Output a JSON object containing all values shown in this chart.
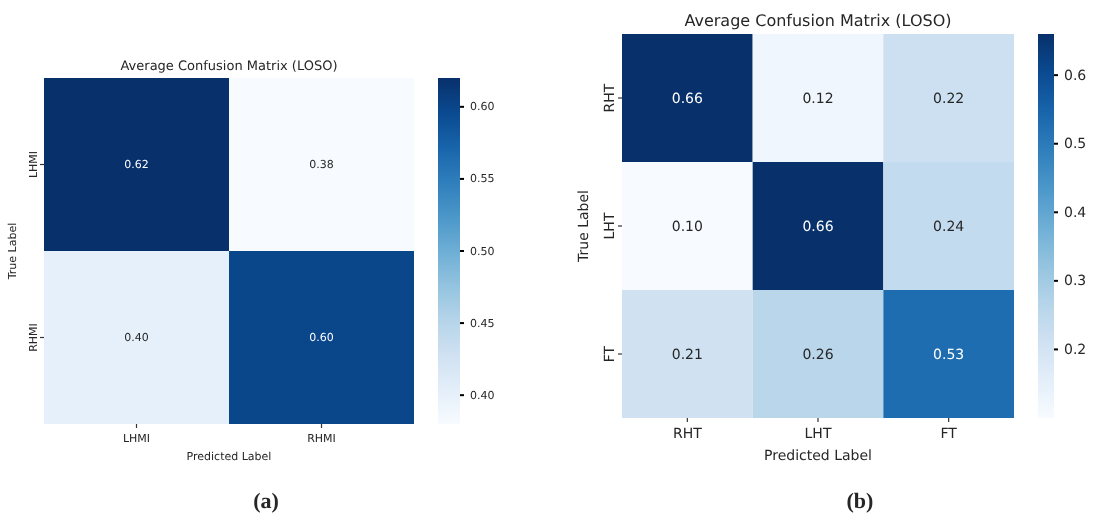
{
  "chart_data": [
    {
      "type": "heatmap",
      "title": "Average Confusion Matrix (LOSO)",
      "xlabel": "Predicted Label",
      "ylabel": "True Label",
      "categories": [
        "LHMI",
        "RHMI"
      ],
      "y_categories": [
        "LHMI",
        "RHMI"
      ],
      "cells": [
        [
          0.62,
          0.38
        ],
        [
          0.4,
          0.6
        ]
      ],
      "cell_labels": [
        [
          "0.62",
          "0.38"
        ],
        [
          "0.40",
          "0.60"
        ]
      ],
      "clim": [
        0.38,
        0.62
      ],
      "cticks": [
        {
          "value": 0.4,
          "label": "0.40"
        },
        {
          "value": 0.45,
          "label": "0.45"
        },
        {
          "value": 0.5,
          "label": "0.50"
        },
        {
          "value": 0.55,
          "label": "0.55"
        },
        {
          "value": 0.6,
          "label": "0.60"
        }
      ],
      "annotations": [
        "(a)"
      ]
    },
    {
      "type": "heatmap",
      "title": "Average Confusion Matrix (LOSO)",
      "xlabel": "Predicted Label",
      "ylabel": "True Label",
      "categories": [
        "RHT",
        "LHT",
        "FT"
      ],
      "y_categories": [
        "RHT",
        "LHT",
        "FT"
      ],
      "cells": [
        [
          0.66,
          0.12,
          0.22
        ],
        [
          0.1,
          0.66,
          0.24
        ],
        [
          0.21,
          0.26,
          0.53
        ]
      ],
      "cell_labels": [
        [
          "0.66",
          "0.12",
          "0.22"
        ],
        [
          "0.10",
          "0.66",
          "0.24"
        ],
        [
          "0.21",
          "0.26",
          "0.53"
        ]
      ],
      "clim": [
        0.1,
        0.66
      ],
      "cticks": [
        0.2,
        0.3,
        0.4,
        0.5,
        0.6
      ],
      "annotations": [
        "(b)"
      ]
    }
  ]
}
